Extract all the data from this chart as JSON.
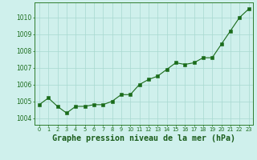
{
  "x": [
    0,
    1,
    2,
    3,
    4,
    5,
    6,
    7,
    8,
    9,
    10,
    11,
    12,
    13,
    14,
    15,
    16,
    17,
    18,
    19,
    20,
    21,
    22,
    23
  ],
  "y": [
    1004.8,
    1005.2,
    1004.7,
    1004.3,
    1004.7,
    1004.7,
    1004.8,
    1004.8,
    1005.0,
    1005.4,
    1005.4,
    1006.0,
    1006.3,
    1006.5,
    1006.9,
    1007.3,
    1007.2,
    1007.3,
    1007.6,
    1007.6,
    1008.4,
    1009.2,
    1010.0,
    1010.5
  ],
  "line_color": "#1a6b1a",
  "marker_color": "#1a6b1a",
  "bg_color": "#cff0ec",
  "grid_color": "#a8d8d0",
  "title": "Graphe pression niveau de la mer (hPa)",
  "ylabel_ticks": [
    1004,
    1005,
    1006,
    1007,
    1008,
    1009,
    1010
  ],
  "ylim": [
    1003.6,
    1010.9
  ],
  "xlim": [
    -0.5,
    23.5
  ],
  "border_color": "#2e7d2e",
  "title_color": "#1a5c1a",
  "title_fontsize": 7.2
}
